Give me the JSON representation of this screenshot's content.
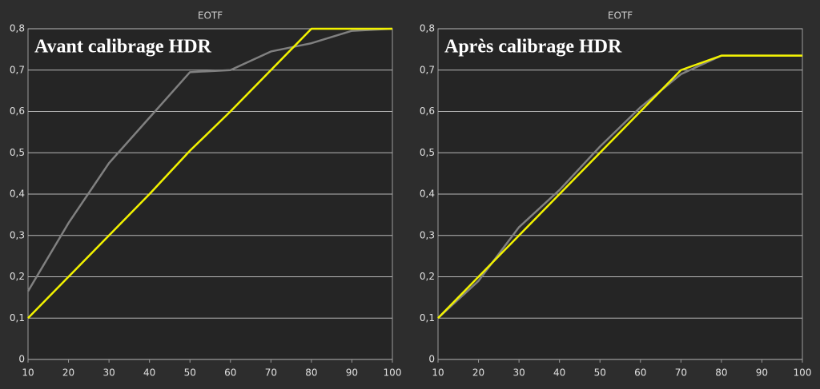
{
  "chart_data": [
    {
      "type": "line",
      "title": "EOTF",
      "annotation": "Avant calibrage HDR",
      "x": [
        10,
        20,
        30,
        40,
        50,
        60,
        70,
        80,
        90,
        100
      ],
      "series": [
        {
          "color": "#808080",
          "values": [
            0.165,
            0.33,
            0.475,
            0.585,
            0.695,
            0.7,
            0.745,
            0.765,
            0.795,
            0.8
          ]
        },
        {
          "color": "#f2f200",
          "values": [
            0.1,
            0.2,
            0.3,
            0.4,
            0.505,
            0.6,
            0.7,
            0.8,
            0.8,
            0.8
          ]
        }
      ],
      "xlim": [
        10,
        100
      ],
      "xticks": [
        10,
        20,
        30,
        40,
        50,
        60,
        70,
        80,
        90,
        100
      ],
      "ylim": [
        0,
        0.8
      ],
      "yticks": [
        {
          "value": 0,
          "label": "0"
        },
        {
          "value": 0.1,
          "label": "0,1"
        },
        {
          "value": 0.2,
          "label": "0,2"
        },
        {
          "value": 0.3,
          "label": "0,3"
        },
        {
          "value": 0.4,
          "label": "0,4"
        },
        {
          "value": 0.5,
          "label": "0,5"
        },
        {
          "value": 0.6,
          "label": "0,6"
        },
        {
          "value": 0.7,
          "label": "0,7"
        },
        {
          "value": 0.8,
          "label": "0,8"
        }
      ],
      "grid": true
    },
    {
      "type": "line",
      "title": "EOTF",
      "annotation": "Après calibrage HDR",
      "x": [
        10,
        20,
        30,
        40,
        50,
        60,
        70,
        80,
        90,
        100
      ],
      "series": [
        {
          "color": "#808080",
          "values": [
            0.1,
            0.19,
            0.32,
            0.41,
            0.515,
            0.61,
            0.69,
            0.735,
            0.735,
            0.735
          ]
        },
        {
          "color": "#f2f200",
          "values": [
            0.1,
            0.2,
            0.3,
            0.4,
            0.5,
            0.6,
            0.7,
            0.735,
            0.735,
            0.735
          ]
        }
      ],
      "xlim": [
        10,
        100
      ],
      "xticks": [
        10,
        20,
        30,
        40,
        50,
        60,
        70,
        80,
        90,
        100
      ],
      "ylim": [
        0,
        0.8
      ],
      "yticks": [
        {
          "value": 0,
          "label": "0"
        },
        {
          "value": 0.1,
          "label": "0,1"
        },
        {
          "value": 0.2,
          "label": "0,2"
        },
        {
          "value": 0.3,
          "label": "0,3"
        },
        {
          "value": 0.4,
          "label": "0,4"
        },
        {
          "value": 0.5,
          "label": "0,5"
        },
        {
          "value": 0.6,
          "label": "0,6"
        },
        {
          "value": 0.7,
          "label": "0,7"
        },
        {
          "value": 0.8,
          "label": "0,8"
        }
      ],
      "grid": true
    }
  ]
}
